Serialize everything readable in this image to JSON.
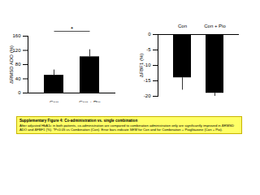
{
  "chart_data": [
    {
      "type": "bar",
      "categories": [
        "Con",
        "Con + Pio"
      ],
      "values": [
        50,
        102
      ],
      "errors": [
        15,
        20
      ],
      "color": "#000000",
      "ylabel": "ΔRMSD ADO (%)",
      "ylim": [
        0,
        160
      ],
      "yticks": [
        0,
        40,
        80,
        120,
        160
      ],
      "annotations": [
        "*"
      ],
      "grid": false
    },
    {
      "type": "bar",
      "categories": [
        "Con",
        "Con + Pio"
      ],
      "values": [
        -14,
        -19
      ],
      "errors": [
        4,
        5
      ],
      "color": "#000000",
      "ylabel": "ΔFBF1 (%)",
      "ylim": [
        -20,
        0
      ],
      "yticks": [
        -20,
        -15,
        -10,
        -5,
        0
      ],
      "grid": false
    }
  ],
  "caption": {
    "title": "Supplementary Figure 4: Co-administration vs. single combination",
    "text": "After adjusted HbA1c in both patients, co-administration are compared to combination administration only are significantly improved in ΔRMSD ADO and ΔFBF1 (%). *P<0.05 vs Combination (Con). Error bars indicate SEM for Con and for Combination + Pioglitazone (Con + Pio)."
  }
}
